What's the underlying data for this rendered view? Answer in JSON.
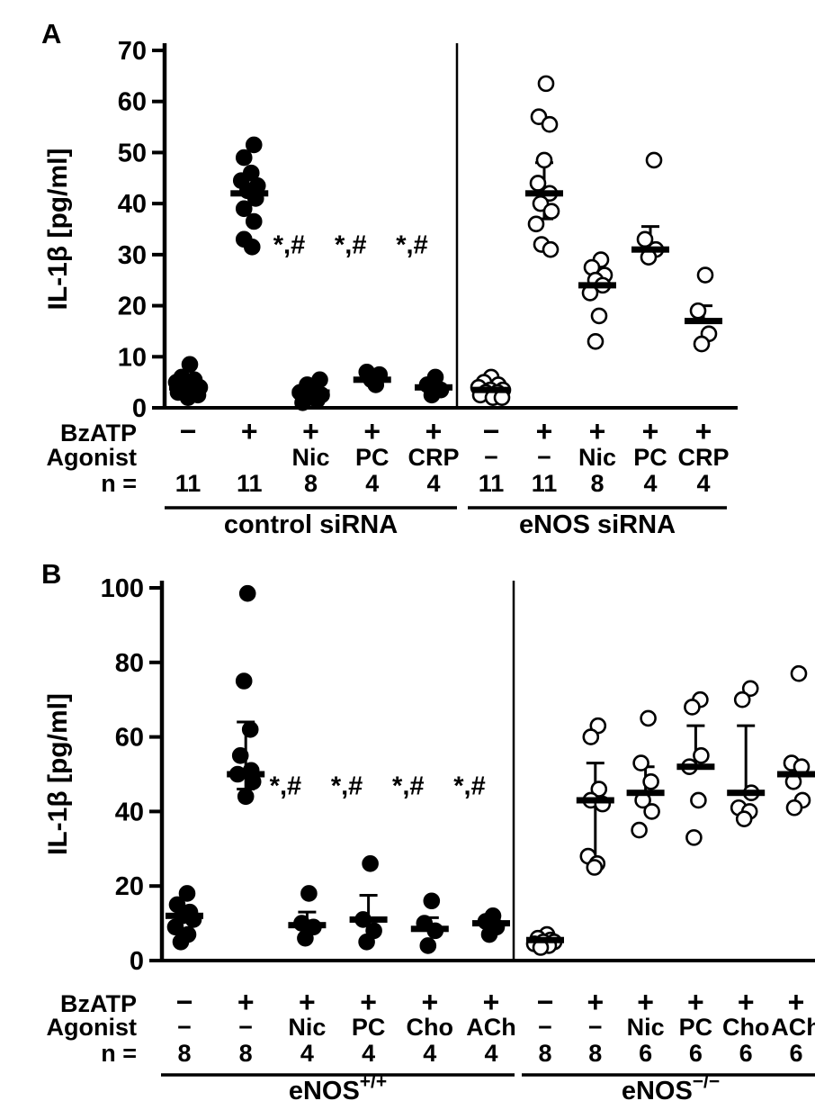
{
  "figure": {
    "background_color": "#ffffff",
    "ink_color": "#000000"
  },
  "chart_data": [
    {
      "type": "scatter",
      "label": "A",
      "ylabel": "IL-1β [pg/ml]",
      "ylim": [
        0,
        70
      ],
      "yticks": [
        0,
        10,
        20,
        30,
        40,
        50,
        60,
        70
      ],
      "significance_text": "*,#",
      "row_labels": {
        "treatment": "BzATP",
        "agonist": "Agonist",
        "n": "n ="
      },
      "groups": [
        {
          "name": "control siRNA",
          "name_sup": "",
          "marker": "filled-circle",
          "sig_cols": [
            2,
            3,
            4
          ],
          "sig_y": 32,
          "columns": [
            {
              "bzatp": "−",
              "agonist": "",
              "n": "11",
              "median": 4,
              "points": [
                8.5,
                6,
                5.5,
                5,
                4.5,
                4,
                4,
                3.5,
                3,
                2.5,
                2
              ],
              "jitter": [
                2,
                -7,
                7,
                -13,
                1,
                13,
                -4,
                8,
                -11,
                11,
                0
              ]
            },
            {
              "bzatp": "+",
              "agonist": "",
              "n": "11",
              "median": 42,
              "points": [
                51.5,
                49,
                46,
                44.5,
                43.5,
                42.5,
                41,
                39,
                36.5,
                33,
                31.5
              ],
              "jitter": [
                5,
                -6,
                2,
                -9,
                9,
                -2,
                7,
                -6,
                5,
                -6,
                3
              ]
            },
            {
              "bzatp": "+",
              "agonist": "Nic",
              "n": "8",
              "median": 3,
              "points": [
                5.5,
                4.5,
                3.5,
                3,
                2.5,
                2,
                1.5,
                1
              ],
              "jitter": [
                10,
                -4,
                5,
                -12,
                12,
                -4,
                7,
                -9
              ]
            },
            {
              "bzatp": "+",
              "agonist": "PC",
              "n": "4",
              "median": 5.5,
              "points": [
                7,
                6.5,
                5.5,
                4.5
              ],
              "jitter": [
                -6,
                8,
                -1,
                4
              ]
            },
            {
              "bzatp": "+",
              "agonist": "CRP",
              "n": "4",
              "median": 4,
              "points": [
                6,
                4.5,
                3.5,
                2.5
              ],
              "jitter": [
                2,
                -7,
                8,
                -2
              ]
            }
          ]
        },
        {
          "name": "eNOS siRNA",
          "name_sup": "",
          "marker": "open-circle",
          "sig_cols": [],
          "sig_y": null,
          "columns": [
            {
              "bzatp": "−",
              "agonist": "−",
              "n": "11",
              "median": 3.5,
              "points": [
                6,
                5,
                4.5,
                4,
                3.5,
                3.5,
                3,
                3,
                2.5,
                2,
                2
              ],
              "jitter": [
                0,
                -8,
                8,
                -14,
                -1,
                13,
                -6,
                7,
                -12,
                2,
                12
              ]
            },
            {
              "bzatp": "+",
              "agonist": "−",
              "n": "11",
              "median": 42,
              "whisker_hi": 48,
              "whisker_lo": 37,
              "points": [
                63.5,
                57,
                55.5,
                48.5,
                44,
                42,
                40,
                38.5,
                36,
                32,
                31
              ],
              "jitter": [
                2,
                -6,
                6,
                0,
                -7,
                6,
                -4,
                8,
                -9,
                -3,
                7
              ]
            },
            {
              "bzatp": "+",
              "agonist": "Nic",
              "n": "8",
              "median": 24,
              "whisker_hi": 28,
              "points": [
                29,
                27.5,
                26,
                25,
                24,
                22.5,
                18,
                13
              ],
              "jitter": [
                4,
                -6,
                8,
                -2,
                6,
                -8,
                2,
                -2
              ]
            },
            {
              "bzatp": "+",
              "agonist": "PC",
              "n": "4",
              "median": 31,
              "whisker_hi": 35.5,
              "points": [
                48.5,
                33,
                31,
                29.5
              ],
              "jitter": [
                4,
                -6,
                6,
                -2
              ]
            },
            {
              "bzatp": "+",
              "agonist": "CRP",
              "n": "4",
              "median": 17,
              "whisker_hi": 20,
              "points": [
                26,
                19,
                14.5,
                12.5
              ],
              "jitter": [
                2,
                -6,
                6,
                -2
              ]
            }
          ]
        }
      ]
    },
    {
      "type": "scatter",
      "label": "B",
      "ylabel": "IL-1β [pg/ml]",
      "ylim": [
        0,
        100
      ],
      "yticks": [
        0,
        20,
        40,
        60,
        80,
        100
      ],
      "significance_text": "*,#",
      "row_labels": {
        "treatment": "BzATP",
        "agonist": "Agonist",
        "n": "n ="
      },
      "groups": [
        {
          "name": "eNOS",
          "name_sup": "+/+",
          "marker": "filled-circle",
          "sig_cols": [
            2,
            3,
            4,
            5
          ],
          "sig_y": 47,
          "columns": [
            {
              "bzatp": "−",
              "agonist": "−",
              "n": "8",
              "median": 12,
              "points": [
                18,
                15,
                13,
                12,
                11,
                9,
                7,
                5
              ],
              "jitter": [
                3,
                -8,
                6,
                -2,
                10,
                -10,
                4,
                -4
              ]
            },
            {
              "bzatp": "+",
              "agonist": "−",
              "n": "8",
              "median": 50,
              "whisker_hi": 64,
              "whisker_lo": 46,
              "points": [
                98.5,
                75,
                62,
                55,
                51,
                50,
                48,
                44
              ],
              "jitter": [
                2,
                -2,
                5,
                -6,
                6,
                -9,
                8,
                0
              ]
            },
            {
              "bzatp": "+",
              "agonist": "Nic",
              "n": "4",
              "median": 9.5,
              "whisker_hi": 13,
              "points": [
                18,
                10,
                9,
                6
              ],
              "jitter": [
                2,
                -6,
                7,
                -2
              ]
            },
            {
              "bzatp": "+",
              "agonist": "PC",
              "n": "4",
              "median": 11,
              "whisker_hi": 17.5,
              "points": [
                26,
                11,
                8,
                5
              ],
              "jitter": [
                2,
                -6,
                6,
                -2
              ]
            },
            {
              "bzatp": "+",
              "agonist": "Cho",
              "n": "4",
              "median": 8.5,
              "whisker_hi": 11.5,
              "points": [
                16,
                10,
                8,
                4
              ],
              "jitter": [
                2,
                -6,
                6,
                -2
              ]
            },
            {
              "bzatp": "+",
              "agonist": "ACh",
              "n": "4",
              "median": 10,
              "points": [
                12,
                10.5,
                9,
                7
              ],
              "jitter": [
                2,
                -6,
                6,
                -2
              ]
            }
          ]
        },
        {
          "name": "eNOS",
          "name_sup": "−/−",
          "marker": "open-circle",
          "sig_cols": [],
          "sig_y": null,
          "columns": [
            {
              "bzatp": "−",
              "agonist": "−",
              "n": "8",
              "median": 5.5,
              "points": [
                7,
                6,
                5.5,
                5,
                5,
                4.5,
                4,
                3.5
              ],
              "jitter": [
                2,
                -8,
                6,
                -2,
                10,
                -12,
                4,
                -5
              ]
            },
            {
              "bzatp": "+",
              "agonist": "−",
              "n": "8",
              "median": 43,
              "whisker_hi": 53,
              "whisker_lo": 26,
              "points": [
                63,
                60,
                46,
                43,
                42,
                28,
                26,
                25
              ],
              "jitter": [
                3,
                -5,
                4,
                -5,
                8,
                -8,
                2,
                -1
              ]
            },
            {
              "bzatp": "+",
              "agonist": "Nic",
              "n": "6",
              "median": 45,
              "whisker_hi": 52,
              "points": [
                65,
                53,
                48,
                43,
                40,
                35
              ],
              "jitter": [
                3,
                -5,
                6,
                -3,
                7,
                -7
              ]
            },
            {
              "bzatp": "+",
              "agonist": "PC",
              "n": "6",
              "median": 52,
              "whisker_hi": 63,
              "points": [
                70,
                68,
                55,
                52,
                43,
                33
              ],
              "jitter": [
                5,
                -4,
                6,
                -7,
                3,
                -2
              ]
            },
            {
              "bzatp": "+",
              "agonist": "Cho",
              "n": "6",
              "median": 45,
              "whisker_hi": 63,
              "points": [
                73,
                70,
                45,
                41,
                40,
                38
              ],
              "jitter": [
                5,
                -4,
                6,
                -8,
                4,
                -2
              ]
            },
            {
              "bzatp": "+",
              "agonist": "ACh",
              "n": "6",
              "median": 50,
              "points": [
                77,
                53,
                52,
                48,
                43,
                41
              ],
              "jitter": [
                3,
                -5,
                6,
                -3,
                7,
                -2
              ]
            }
          ]
        }
      ]
    }
  ]
}
